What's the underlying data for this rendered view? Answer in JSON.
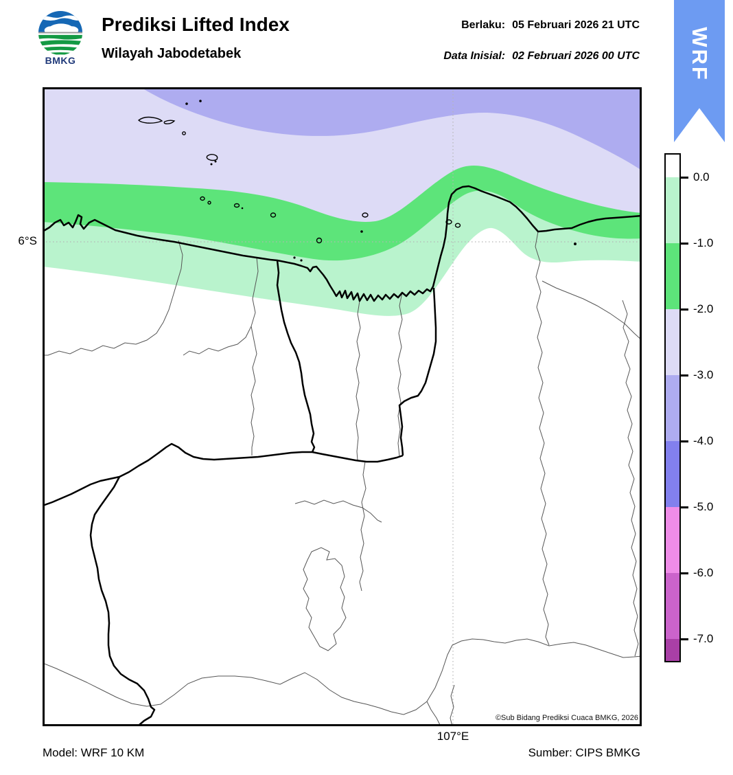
{
  "header": {
    "logo_text": "BMKG",
    "title": "Prediksi Lifted Index",
    "subtitle": "Wilayah Jabodetabek",
    "valid_label": "Berlaku:",
    "valid_value": "05 Februari 2026 21 UTC",
    "initial_label": "Data Inisial:",
    "initial_value": "02 Februari 2026 00 UTC",
    "ribbon_label": "WRF",
    "ribbon_color": "#6d9bf2"
  },
  "map": {
    "lat_label": "6°S",
    "lon_label": "107°E",
    "copyright": "©Sub Bidang Prediksi Cuaca BMKG, 2026",
    "fill_colors": {
      "land": "#ffffff",
      "li_0_to_minus1": "#b9f3cd",
      "li_minus1_to_minus2": "#5de47a",
      "li_minus2_to_minus3": "#dddbf6",
      "li_minus3_to_minus4": "#aeacf0"
    }
  },
  "colorbar": {
    "tick_labels": [
      "0.0",
      "-1.0",
      "-2.0",
      "-3.0",
      "-4.0",
      "-5.0",
      "-6.0",
      "-7.0"
    ],
    "segment_colors": [
      "#ffffff",
      "#b9f3cd",
      "#5de47a",
      "#dddbf6",
      "#aeacf0",
      "#8280ee",
      "#ef8ce8",
      "#cb63cb",
      "#a93fa6"
    ]
  },
  "footer": {
    "model": "Model: WRF 10 KM",
    "source": "Sumber: CIPS BMKG"
  },
  "chart_data": {
    "type": "heatmap",
    "title": "Prediksi Lifted Index",
    "region": "Wilayah Jabodetabek",
    "valid_time": "05 Februari 2026 21 UTC",
    "initial_time": "02 Februari 2026 00 UTC",
    "model": "WRF 10 KM",
    "source": "CIPS BMKG",
    "colorbar_levels": [
      0.0,
      -1.0,
      -2.0,
      -3.0,
      -4.0,
      -5.0,
      -6.0,
      -7.0
    ],
    "colorbar_colors": [
      "#ffffff",
      "#b9f3cd",
      "#5de47a",
      "#dddbf6",
      "#aeacf0",
      "#8280ee",
      "#ef8ce8",
      "#cb63cb",
      "#a93fa6"
    ],
    "gridlines": {
      "lat": "6°S",
      "lon": "107°E"
    },
    "pattern": "Lifted Index bands over the Java Sea north of the coast: 0 to -1 and -1 to -2 (greens) along the coastline, -2 to -3 and -3 to -4 (purples) further offshore; values above 0 (white) over inland Jabodetabek"
  }
}
